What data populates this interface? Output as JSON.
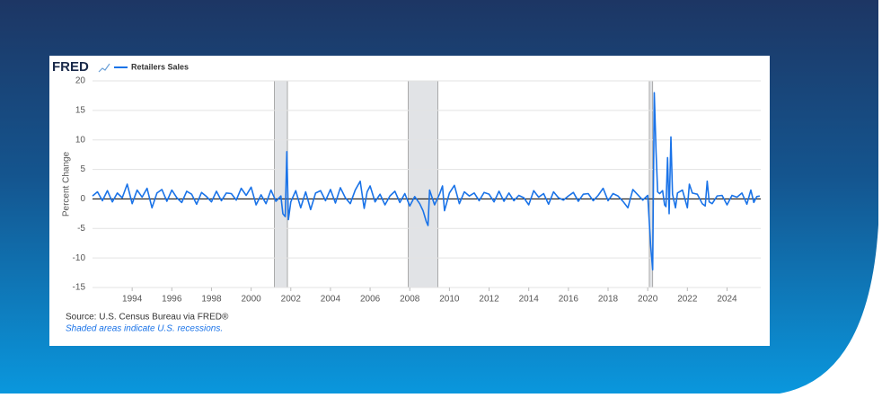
{
  "chart_data": {
    "type": "line",
    "logo": "FRED",
    "ylabel": "Percent Change",
    "source": "Source: U.S. Census Bureau via FRED®",
    "note": "Shaded areas indicate U.S. recessions.",
    "x": [
      1992.0,
      1992.25,
      1992.5,
      1992.75,
      1993.0,
      1993.25,
      1993.5,
      1993.75,
      1994.0,
      1994.25,
      1994.5,
      1994.75,
      1995.0,
      1995.25,
      1995.5,
      1995.75,
      1996.0,
      1996.25,
      1996.5,
      1996.75,
      1997.0,
      1997.25,
      1997.5,
      1997.75,
      1998.0,
      1998.25,
      1998.5,
      1998.75,
      1999.0,
      1999.25,
      1999.5,
      1999.75,
      2000.0,
      2000.25,
      2000.5,
      2000.75,
      2001.0,
      2001.25,
      2001.5,
      2001.6,
      2001.72,
      2001.8,
      2001.88,
      2002.0,
      2002.25,
      2002.5,
      2002.75,
      2003.0,
      2003.25,
      2003.5,
      2003.75,
      2004.0,
      2004.25,
      2004.5,
      2004.75,
      2005.0,
      2005.25,
      2005.5,
      2005.7,
      2005.85,
      2006.0,
      2006.25,
      2006.5,
      2006.75,
      2007.0,
      2007.25,
      2007.5,
      2007.75,
      2008.0,
      2008.25,
      2008.5,
      2008.67,
      2008.83,
      2008.92,
      2009.0,
      2009.25,
      2009.5,
      2009.65,
      2009.75,
      2010.0,
      2010.25,
      2010.5,
      2010.75,
      2011.0,
      2011.25,
      2011.5,
      2011.75,
      2012.0,
      2012.25,
      2012.5,
      2012.75,
      2013.0,
      2013.25,
      2013.5,
      2013.75,
      2014.0,
      2014.25,
      2014.5,
      2014.75,
      2015.0,
      2015.25,
      2015.5,
      2015.75,
      2016.0,
      2016.25,
      2016.5,
      2016.75,
      2017.0,
      2017.25,
      2017.5,
      2017.75,
      2018.0,
      2018.25,
      2018.5,
      2018.75,
      2019.0,
      2019.25,
      2019.5,
      2019.75,
      2020.0,
      2020.15,
      2020.25,
      2020.33,
      2020.42,
      2020.5,
      2020.6,
      2020.75,
      2020.85,
      2020.92,
      2021.0,
      2021.08,
      2021.17,
      2021.25,
      2021.4,
      2021.5,
      2021.75,
      2022.0,
      2022.1,
      2022.25,
      2022.5,
      2022.75,
      2022.9,
      2023.0,
      2023.1,
      2023.25,
      2023.5,
      2023.75,
      2024.0,
      2024.25,
      2024.5,
      2024.75,
      2025.0,
      2025.2,
      2025.35,
      2025.5,
      2025.65
    ],
    "series": [
      {
        "name": "Retailers Sales",
        "color": "#1a73e8",
        "values": [
          0.5,
          1.2,
          -0.3,
          1.4,
          -0.5,
          1.0,
          0.2,
          2.5,
          -0.8,
          1.5,
          0.3,
          1.8,
          -1.5,
          1.0,
          1.6,
          -0.4,
          1.5,
          0.2,
          -0.6,
          1.3,
          0.8,
          -0.9,
          1.1,
          0.4,
          -0.5,
          1.3,
          -0.3,
          1.0,
          0.9,
          -0.2,
          1.8,
          0.6,
          2.0,
          -1.0,
          0.7,
          -0.8,
          1.5,
          -0.4,
          0.5,
          -2.5,
          -3.0,
          8.0,
          -3.5,
          -0.5,
          1.4,
          -1.5,
          1.2,
          -1.8,
          1.0,
          1.4,
          -0.3,
          1.6,
          -0.7,
          1.9,
          0.2,
          -0.8,
          1.5,
          3.0,
          -1.6,
          1.2,
          2.2,
          -0.5,
          0.8,
          -1.0,
          0.5,
          1.3,
          -0.6,
          0.9,
          -1.2,
          0.4,
          -0.8,
          -2.0,
          -3.8,
          -4.5,
          1.5,
          -1.0,
          0.8,
          2.2,
          -2.0,
          1.0,
          2.3,
          -0.8,
          1.2,
          0.5,
          1.0,
          -0.3,
          1.1,
          0.8,
          -0.5,
          1.3,
          -0.4,
          1.0,
          -0.3,
          0.6,
          0.2,
          -1.0,
          1.4,
          0.3,
          0.9,
          -0.9,
          1.2,
          0.2,
          -0.2,
          0.5,
          1.1,
          -0.4,
          0.8,
          0.9,
          -0.3,
          0.6,
          1.8,
          -0.3,
          0.9,
          0.5,
          -0.4,
          -1.5,
          1.6,
          0.7,
          -0.2,
          0.6,
          -8.0,
          -12.0,
          18.0,
          8.0,
          1.2,
          0.9,
          1.4,
          -1.0,
          -1.3,
          7.0,
          -2.5,
          10.5,
          0.8,
          -1.5,
          1.0,
          1.5,
          -1.5,
          2.5,
          1.0,
          0.8,
          -0.8,
          -1.2,
          3.0,
          -0.5,
          -0.8,
          0.5,
          0.6,
          -1.0,
          0.6,
          0.3,
          1.0,
          -0.9,
          1.5,
          -0.6,
          0.4,
          0.5
        ]
      }
    ],
    "recessions": [
      [
        2001.17,
        2001.83
      ],
      [
        2007.92,
        2009.42
      ],
      [
        2020.08,
        2020.25
      ]
    ],
    "xlim": [
      1992,
      2025.7
    ],
    "ylim": [
      -15,
      20
    ],
    "xticks": [
      1994,
      1996,
      1998,
      2000,
      2002,
      2004,
      2006,
      2008,
      2010,
      2012,
      2014,
      2016,
      2018,
      2020,
      2022,
      2024
    ],
    "yticks": [
      -15,
      -10,
      -5,
      0,
      5,
      10,
      15,
      20
    ],
    "grid": true
  }
}
